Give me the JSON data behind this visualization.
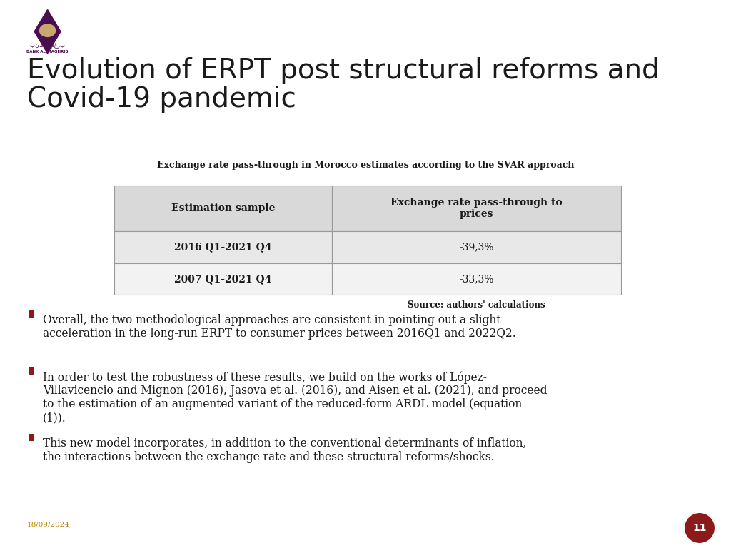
{
  "title_line1": "Evolution of ERPT post structural reforms and",
  "title_line2": "Covid-19 pandemic",
  "title_color": "#1a1a1a",
  "title_fontsize": 28,
  "bg_color": "#ffffff",
  "table_caption": "Exchange rate pass-through in Morocco estimates according to the SVAR approach",
  "table_source": "Source: authors' calculations",
  "table_headers": [
    "Estimation sample",
    "Exchange rate pass-through to\nprices"
  ],
  "table_rows": [
    [
      "2016 Q1-2021 Q4",
      "-39,3%"
    ],
    [
      "2007 Q1-2021 Q4",
      "-33,3%"
    ]
  ],
  "table_header_bg": "#d9d9d9",
  "table_row1_bg": "#e8e8e8",
  "table_row2_bg": "#f2f2f2",
  "table_border_color": "#999999",
  "bullet_color": "#8b1a1a",
  "bullet_points": [
    "Overall, the two methodological approaches are consistent in pointing out a slight\nacceleration in the long-run ERPT to consumer prices between 2016Q1 and 2022Q2.",
    "In order to test the robustness of these results, we build on the works of López-\nVillavicencio and Mignon (2016), Jasova et al. (2016), and Aisen et al. (2021), and proceed\nto the estimation of an augmented variant of the reduced-form ARDL model (equation\n(1)).",
    "This new model incorporates, in addition to the conventional determinants of inflation,\nthe interactions between the exchange rate and these structural reforms/shocks."
  ],
  "bullet_fontsize": 11.2,
  "date_text": "18/09/2024",
  "date_color": "#b8860b",
  "page_number": "11",
  "page_circle_color": "#8b1a1a",
  "accent_color": "#4a0e4e"
}
